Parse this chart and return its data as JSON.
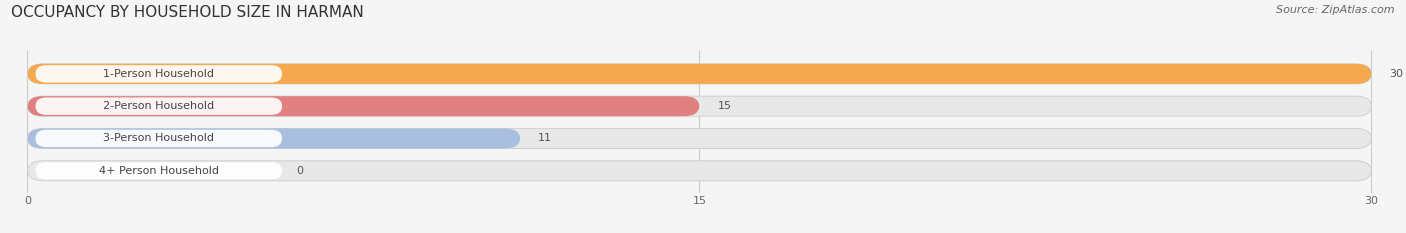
{
  "title": "OCCUPANCY BY HOUSEHOLD SIZE IN HARMAN",
  "source": "Source: ZipAtlas.com",
  "categories": [
    "1-Person Household",
    "2-Person Household",
    "3-Person Household",
    "4+ Person Household"
  ],
  "values": [
    30,
    15,
    11,
    0
  ],
  "bar_colors": [
    "#F5A94E",
    "#E08080",
    "#A8BFE0",
    "#C9B8D8"
  ],
  "xlim": [
    0,
    30
  ],
  "xticks": [
    0,
    15,
    30
  ],
  "background_color": "#f5f5f5",
  "bar_bg_color": "#e8e8e8",
  "title_fontsize": 11,
  "source_fontsize": 8,
  "label_fontsize": 8,
  "value_fontsize": 8
}
